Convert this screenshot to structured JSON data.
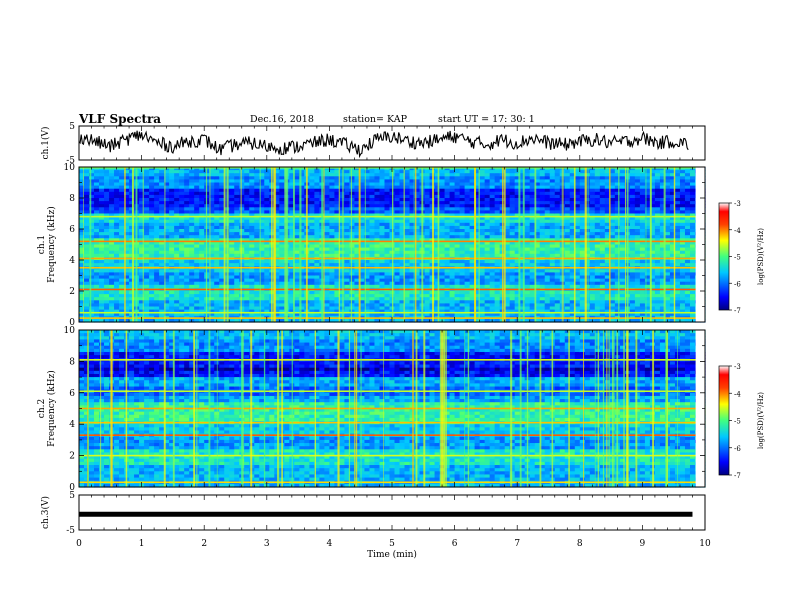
{
  "header": {
    "title": "VLF Spectra",
    "date": "Dec.16, 2018",
    "station": "station= KAP",
    "start": "start  UT =   17: 30: 1"
  },
  "chart_data": [
    {
      "type": "line",
      "panel": "ch1-waveform",
      "ylabel": "ch.1(V)",
      "ylim": [
        -5,
        5
      ],
      "yticks": [
        "5",
        "-5"
      ],
      "xlim": [
        0,
        10
      ],
      "xlabel": "",
      "series": [
        {
          "color": "#000000",
          "x": [
            0,
            0.25,
            0.5,
            0.75,
            1,
            1.25,
            1.5,
            1.75,
            2,
            2.25,
            2.5,
            2.75,
            3,
            3.25,
            3.5,
            3.75,
            4,
            4.25,
            4.5,
            4.75,
            5,
            5.25,
            5.5,
            5.75,
            6,
            6.25,
            6.5,
            6.75,
            7,
            7.25,
            7.5,
            7.75,
            8,
            8.25,
            8.5,
            8.75,
            9,
            9.25,
            9.5,
            9.75
          ],
          "y": [
            2,
            0.5,
            -1,
            1,
            2.5,
            0,
            -1,
            0.5,
            1,
            -2,
            -0.5,
            0,
            -1,
            -1.5,
            -1,
            0,
            1,
            -0.5,
            -2,
            1,
            2,
            0.5,
            0,
            1,
            2,
            0.5,
            -0.5,
            1,
            0,
            1.5,
            0,
            -0.5,
            0.5,
            1,
            0,
            0.5,
            1.5,
            0,
            0.5,
            -0.5
          ]
        }
      ]
    },
    {
      "type": "heatmap",
      "panel": "ch1-spectrogram",
      "ylabel": "ch.1 Frequency (kHz)",
      "ylim": [
        0,
        10
      ],
      "yticks": [
        "0",
        "2",
        "4",
        "6",
        "8",
        "10"
      ],
      "xlim": [
        0,
        10
      ],
      "colorbar": {
        "label": "log(PSD)(V²/Hz)",
        "range": [
          -7,
          -3
        ],
        "ticks": [
          "-3",
          "-4",
          "-5",
          "-6",
          "-7"
        ]
      }
    },
    {
      "type": "heatmap",
      "panel": "ch2-spectrogram",
      "ylabel": "ch.2 Frequency (kHz)",
      "ylim": [
        0,
        10
      ],
      "yticks": [
        "0",
        "2",
        "4",
        "6",
        "8",
        "10"
      ],
      "xlim": [
        0,
        10
      ],
      "colorbar": {
        "label": "log(PSD)(V²/Hz)",
        "range": [
          -7,
          -3
        ],
        "ticks": [
          "-3",
          "-4",
          "-5",
          "-6",
          "-7"
        ]
      }
    },
    {
      "type": "line",
      "panel": "ch3-waveform",
      "ylabel": "ch.3(V)",
      "ylim": [
        -5,
        5
      ],
      "yticks": [
        "5",
        "-5"
      ],
      "xlim": [
        0,
        10
      ],
      "xlabel": "Time (min)",
      "xticks": [
        "0",
        "1",
        "2",
        "3",
        "4",
        "5",
        "6",
        "7",
        "8",
        "9",
        "10"
      ],
      "series": [
        {
          "color": "#000000",
          "x": [
            0,
            9.8
          ],
          "y": [
            -0.5,
            -0.5
          ]
        }
      ]
    }
  ]
}
